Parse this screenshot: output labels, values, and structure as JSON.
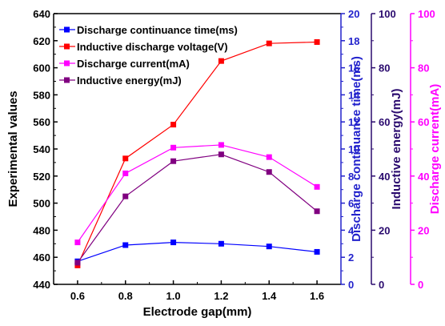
{
  "chart_data": {
    "type": "line",
    "x": [
      0.6,
      0.8,
      1.0,
      1.2,
      1.4,
      1.6
    ],
    "xlabel": "Electrode gap(mm)",
    "xlim": [
      0.5,
      1.7
    ],
    "xticks": [
      "0.6",
      "0.8",
      "1.0",
      "1.2",
      "1.4",
      "1.6"
    ],
    "axes": {
      "left": {
        "label": "Experimental values",
        "range": [
          440,
          640
        ],
        "ticks": [
          "440",
          "460",
          "480",
          "500",
          "520",
          "540",
          "560",
          "580",
          "600",
          "620",
          "640"
        ],
        "color": "#000000"
      },
      "right1": {
        "label": "Discharge continuance time(ms)",
        "range": [
          0,
          20
        ],
        "ticks": [
          "0",
          "2",
          "4",
          "6",
          "8",
          "10",
          "12",
          "14",
          "16",
          "18",
          "20"
        ],
        "color": "#2222cc"
      },
      "right2": {
        "label": "Inductive energy(mJ)",
        "range": [
          0,
          100
        ],
        "ticks": [
          "0",
          "20",
          "40",
          "60",
          "80",
          "100"
        ],
        "color": "#2a0a6e"
      },
      "right3": {
        "label": "Discharge current(mA)",
        "range": [
          0,
          100
        ],
        "ticks": [
          "0",
          "20",
          "40",
          "60",
          "80",
          "100"
        ],
        "color": "#ff00ff"
      }
    },
    "series": [
      {
        "name": "Discharge continuance time(ms)",
        "axis": "right1",
        "values": [
          1.7,
          2.9,
          3.1,
          3.0,
          2.8,
          2.4
        ],
        "color": "#0000ff"
      },
      {
        "name": "Inductive discharge voltage(V)",
        "axis": "left",
        "values": [
          454,
          533,
          558,
          605,
          618,
          619
        ],
        "color": "#ff0000"
      },
      {
        "name": "Discharge current(mA)",
        "axis": "right3",
        "values": [
          15.5,
          41,
          50.5,
          51.5,
          47,
          36
        ],
        "color": "#ff00ff"
      },
      {
        "name": "Inductive energy(mJ)",
        "axis": "right2",
        "values": [
          8,
          32.5,
          45.5,
          48,
          41.5,
          27
        ],
        "color": "#800080"
      }
    ],
    "legend_position": "top-left",
    "grid": false
  }
}
